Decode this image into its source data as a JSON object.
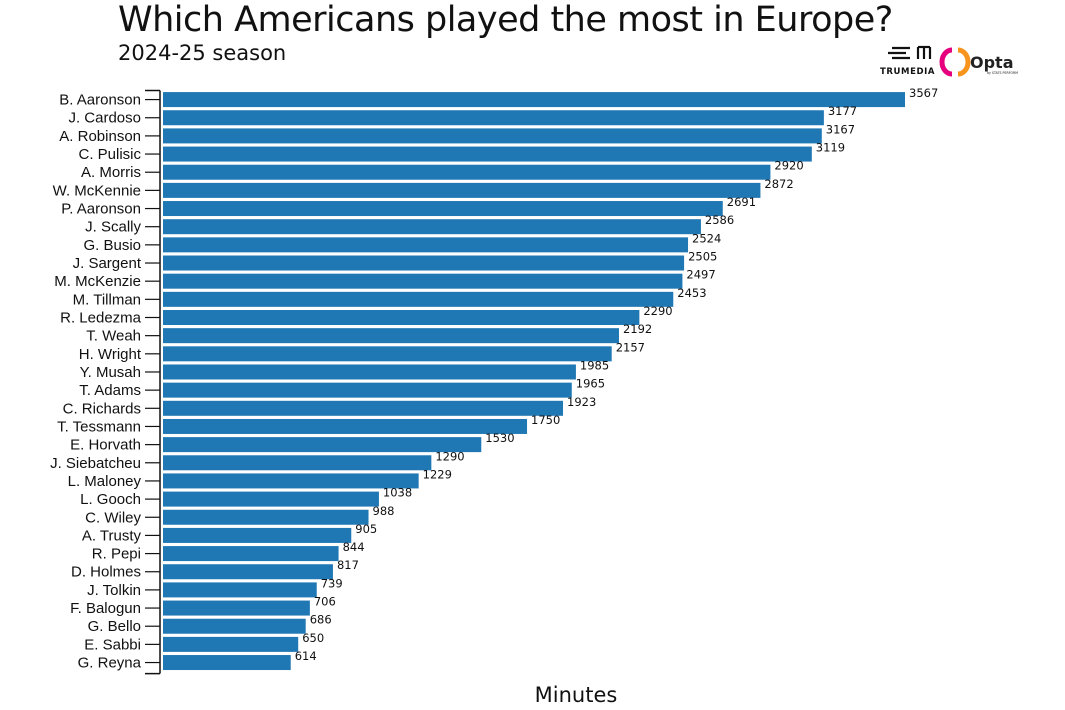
{
  "header": {
    "title": "Which Americans played the most in Europe?",
    "subtitle": "2024-25 season"
  },
  "logos": {
    "trumedia_text": "TRUMEDIA",
    "opta_text": "Opta",
    "opta_subtext": "by STATS PERFORM"
  },
  "colors": {
    "bar": "#1f77b4",
    "axis": "#111111"
  },
  "chart_data": {
    "type": "bar",
    "orientation": "horizontal",
    "title": "Which Americans played the most in Europe?",
    "subtitle": "2024-25 season",
    "xlabel": "Minutes",
    "ylabel": "",
    "xlim": [
      0,
      3567
    ],
    "grid": false,
    "data_labels": true,
    "categories": [
      "B. Aaronson",
      "J. Cardoso",
      "A. Robinson",
      "C. Pulisic",
      "A. Morris",
      "W. McKennie",
      "P. Aaronson",
      "J. Scally",
      "G. Busio",
      "J. Sargent",
      "M. McKenzie",
      "M. Tillman",
      "R. Ledezma",
      "T. Weah",
      "H. Wright",
      "Y. Musah",
      "T. Adams",
      "C. Richards",
      "T. Tessmann",
      "E. Horvath",
      "J. Siebatcheu",
      "L. Maloney",
      "L. Gooch",
      "C. Wiley",
      "A. Trusty",
      "R. Pepi",
      "D. Holmes",
      "J. Tolkin",
      "F. Balogun",
      "G. Bello",
      "E. Sabbi",
      "G. Reyna"
    ],
    "values": [
      3567,
      3177,
      3167,
      3119,
      2920,
      2872,
      2691,
      2586,
      2524,
      2505,
      2497,
      2453,
      2290,
      2192,
      2157,
      1985,
      1965,
      1923,
      1750,
      1530,
      1290,
      1229,
      1038,
      988,
      905,
      844,
      817,
      739,
      706,
      686,
      650,
      614
    ]
  }
}
